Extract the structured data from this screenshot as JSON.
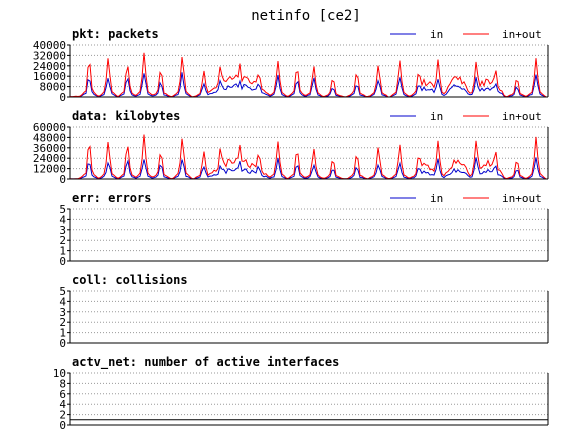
{
  "title": "netinfo [ce2]",
  "colors": {
    "in": "#0000cc",
    "inout": "#ff0000",
    "axis": "#000000",
    "grid": "#9a9a9a",
    "background": "#ffffff"
  },
  "chart_data": [
    {
      "type": "line",
      "title": "pkt: packets",
      "y_ticks": [
        "0",
        "8000",
        "16000",
        "24000",
        "32000",
        "40000"
      ],
      "ylim": [
        0,
        40000
      ],
      "grid": true,
      "legend_position": "top-right",
      "series": [
        {
          "name": "in",
          "color": "#0000cc",
          "peak_scale": 0.55
        },
        {
          "name": "in+out",
          "color": "#ff0000",
          "peak_scale": 1.0
        }
      ],
      "peaks": [
        {
          "x": 0.04,
          "v": 30000
        },
        {
          "x": 0.08,
          "v": 29000
        },
        {
          "x": 0.12,
          "v": 26000
        },
        {
          "x": 0.155,
          "v": 32000
        },
        {
          "x": 0.19,
          "v": 22000
        },
        {
          "x": 0.235,
          "v": 31000
        },
        {
          "x": 0.28,
          "v": 19000
        },
        {
          "x": 0.315,
          "v": 25000
        },
        {
          "x": 0.355,
          "v": 26000
        },
        {
          "x": 0.395,
          "v": 20000
        },
        {
          "x": 0.435,
          "v": 26000
        },
        {
          "x": 0.475,
          "v": 24000
        },
        {
          "x": 0.51,
          "v": 23000
        },
        {
          "x": 0.55,
          "v": 15000
        },
        {
          "x": 0.6,
          "v": 20000
        },
        {
          "x": 0.645,
          "v": 24000
        },
        {
          "x": 0.69,
          "v": 27000
        },
        {
          "x": 0.73,
          "v": 21000
        },
        {
          "x": 0.77,
          "v": 27000
        },
        {
          "x": 0.81,
          "v": 16000
        },
        {
          "x": 0.85,
          "v": 27000
        },
        {
          "x": 0.89,
          "v": 22000
        },
        {
          "x": 0.935,
          "v": 15000
        },
        {
          "x": 0.975,
          "v": 28000
        }
      ],
      "humps": [
        {
          "x0": 0.28,
          "x1": 0.42,
          "v": 14000
        },
        {
          "x0": 0.72,
          "x1": 0.77,
          "v": 11000
        },
        {
          "x0": 0.78,
          "x1": 0.84,
          "v": 13000
        },
        {
          "x0": 0.84,
          "x1": 0.91,
          "v": 12000
        }
      ]
    },
    {
      "type": "line",
      "title": "data: kilobytes",
      "y_ticks": [
        "0",
        "12000",
        "24000",
        "36000",
        "48000",
        "60000"
      ],
      "ylim": [
        0,
        60000
      ],
      "grid": true,
      "legend_position": "top-right",
      "series": [
        {
          "name": "in",
          "color": "#0000cc",
          "peak_scale": 0.5
        },
        {
          "name": "in+out",
          "color": "#ff0000",
          "peak_scale": 1.0
        }
      ],
      "peaks": [
        {
          "x": 0.04,
          "v": 45000
        },
        {
          "x": 0.08,
          "v": 42000
        },
        {
          "x": 0.12,
          "v": 41000
        },
        {
          "x": 0.155,
          "v": 48000
        },
        {
          "x": 0.19,
          "v": 33000
        },
        {
          "x": 0.235,
          "v": 47000
        },
        {
          "x": 0.28,
          "v": 30000
        },
        {
          "x": 0.315,
          "v": 38000
        },
        {
          "x": 0.355,
          "v": 39000
        },
        {
          "x": 0.395,
          "v": 32000
        },
        {
          "x": 0.435,
          "v": 40000
        },
        {
          "x": 0.475,
          "v": 36000
        },
        {
          "x": 0.51,
          "v": 34000
        },
        {
          "x": 0.55,
          "v": 24000
        },
        {
          "x": 0.6,
          "v": 30000
        },
        {
          "x": 0.645,
          "v": 36000
        },
        {
          "x": 0.69,
          "v": 38000
        },
        {
          "x": 0.73,
          "v": 30000
        },
        {
          "x": 0.77,
          "v": 41000
        },
        {
          "x": 0.81,
          "v": 25000
        },
        {
          "x": 0.85,
          "v": 44000
        },
        {
          "x": 0.89,
          "v": 34000
        },
        {
          "x": 0.935,
          "v": 23000
        },
        {
          "x": 0.975,
          "v": 45000
        }
      ],
      "humps": [
        {
          "x0": 0.28,
          "x1": 0.42,
          "v": 20000
        },
        {
          "x0": 0.72,
          "x1": 0.77,
          "v": 16000
        },
        {
          "x0": 0.78,
          "x1": 0.84,
          "v": 19000
        },
        {
          "x0": 0.84,
          "x1": 0.91,
          "v": 18000
        }
      ]
    },
    {
      "type": "line",
      "title": "err: errors",
      "y_ticks": [
        "0",
        "1",
        "2",
        "3",
        "4",
        "5"
      ],
      "ylim": [
        0,
        5
      ],
      "grid": true,
      "legend_position": "top-right",
      "series": [
        {
          "name": "in",
          "color": "#0000cc",
          "constant": 0
        },
        {
          "name": "in+out",
          "color": "#ff0000",
          "constant": 0
        }
      ]
    },
    {
      "type": "line",
      "title": "coll: collisions",
      "y_ticks": [
        "0",
        "1",
        "2",
        "3",
        "4",
        "5"
      ],
      "ylim": [
        0,
        5
      ],
      "grid": true,
      "series": [
        {
          "name": "",
          "color": "#0000cc",
          "constant": 0
        }
      ]
    },
    {
      "type": "line",
      "title": "actv_net: number of active interfaces",
      "y_ticks": [
        "0",
        "2",
        "4",
        "6",
        "8",
        "10"
      ],
      "ylim": [
        0,
        10
      ],
      "grid": true,
      "series": [
        {
          "name": "",
          "color": "#000000",
          "constant": 1
        }
      ]
    }
  ]
}
